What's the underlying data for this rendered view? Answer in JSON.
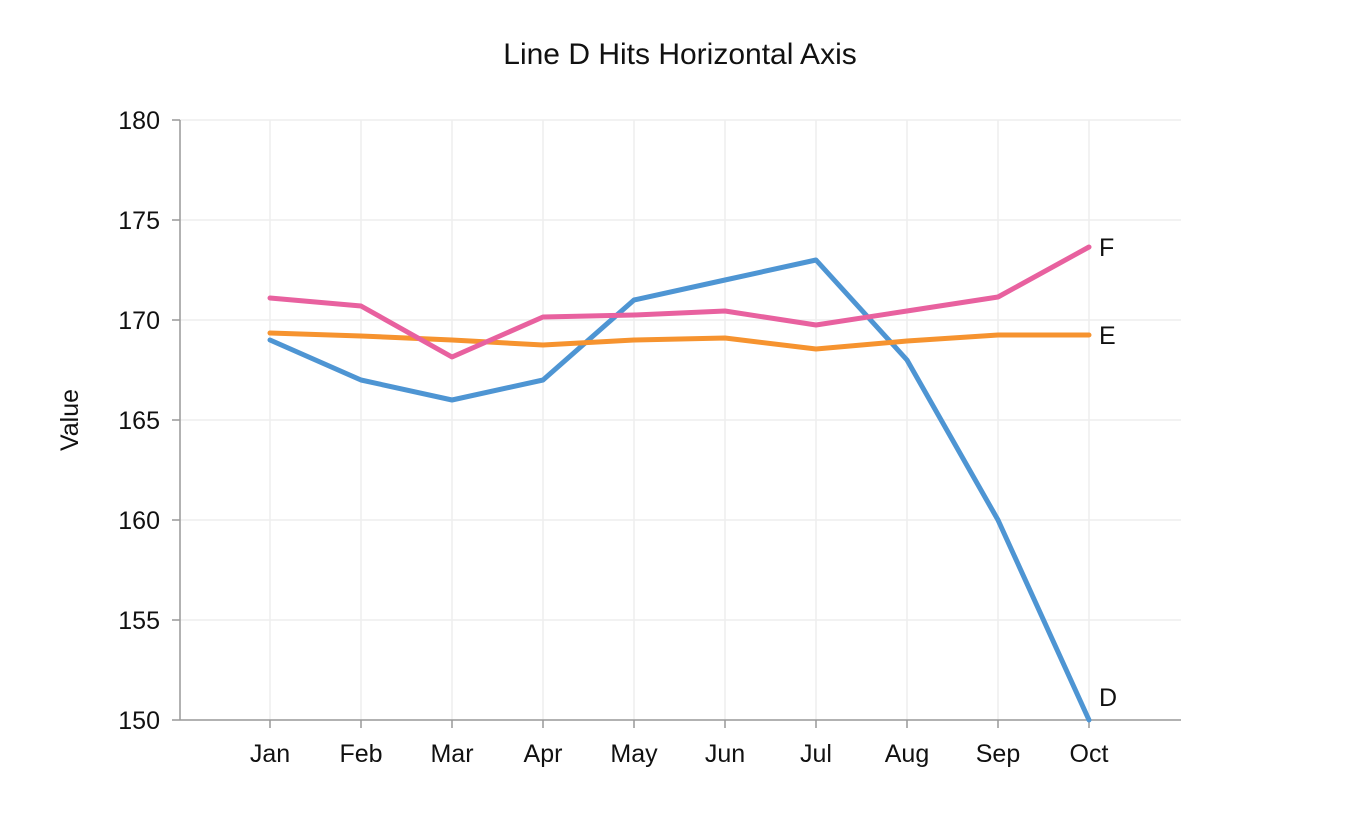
{
  "chart_data": {
    "type": "line",
    "title": "Line D Hits Horizontal Axis",
    "xlabel": "",
    "ylabel": "Value",
    "categories": [
      "Jan",
      "Feb",
      "Mar",
      "Apr",
      "May",
      "Jun",
      "Jul",
      "Aug",
      "Sep",
      "Oct"
    ],
    "ylim": [
      150,
      180
    ],
    "yticks": [
      "150",
      "155",
      "160",
      "165",
      "170",
      "175",
      "180"
    ],
    "grid": true,
    "legend": "end-of-line labels",
    "series": [
      {
        "name": "D",
        "color": "#4e95d3",
        "values": [
          169,
          167,
          166,
          167,
          171,
          172,
          173,
          168,
          160,
          150
        ]
      },
      {
        "name": "E",
        "color": "#f6932f",
        "values": [
          169.35,
          169.2,
          169.0,
          168.75,
          169.0,
          169.1,
          168.55,
          168.95,
          169.25,
          169.25
        ]
      },
      {
        "name": "F",
        "color": "#e8619f",
        "values": [
          171.1,
          170.7,
          168.15,
          170.15,
          170.25,
          170.45,
          169.75,
          170.45,
          171.15,
          173.65
        ]
      }
    ]
  }
}
